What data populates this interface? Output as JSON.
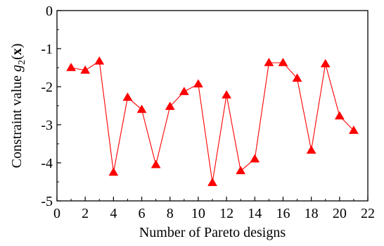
{
  "chart_data": {
    "type": "line",
    "title": "",
    "xlabel": "Number of Pareto designs",
    "ylabel": {
      "prefix": "Constraint value ",
      "var": "g",
      "sub": "2",
      "open": "(",
      "bold": "x",
      "close": ")"
    },
    "xlim": [
      0,
      22
    ],
    "ylim": [
      -5,
      0
    ],
    "xticks": [
      0,
      2,
      4,
      6,
      8,
      10,
      12,
      14,
      16,
      18,
      20,
      22
    ],
    "yticks": [
      0,
      -1,
      -2,
      -3,
      -4,
      -5
    ],
    "grid": false,
    "series": [
      {
        "color": "#ff0000",
        "marker": "triangle-up",
        "x": [
          1,
          2,
          3,
          4,
          5,
          6,
          7,
          8,
          9,
          10,
          11,
          12,
          13,
          14,
          15,
          16,
          17,
          18,
          19,
          20,
          21
        ],
        "y": [
          -1.5,
          -1.57,
          -1.33,
          -4.25,
          -2.28,
          -2.6,
          -4.05,
          -2.52,
          -2.13,
          -1.93,
          -4.52,
          -2.22,
          -4.21,
          -3.9,
          -1.37,
          -1.37,
          -1.78,
          -3.67,
          -1.4,
          -2.77,
          -3.15
        ]
      }
    ]
  }
}
